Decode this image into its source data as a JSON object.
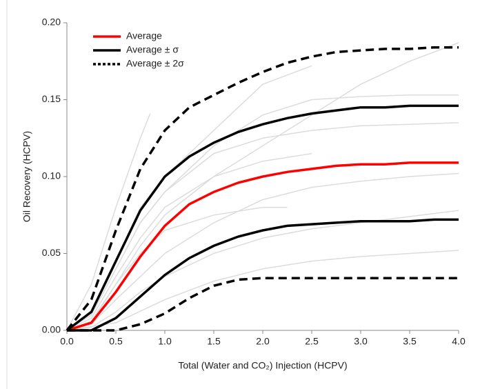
{
  "chart_data": {
    "type": "line",
    "title_y": "Oil Recovery (HCPV)",
    "title_x": "Total (Water and CO₂) Injection (HCPV)",
    "xlim": [
      0,
      4
    ],
    "ylim": [
      0,
      0.2
    ],
    "xticks": [
      {
        "value": 0,
        "label": "0.0"
      },
      0.5,
      {
        "value": 1,
        "label": "1.0"
      },
      1.5,
      {
        "value": 2,
        "label": "2.0"
      },
      2.5,
      {
        "value": 3,
        "label": "3.0"
      },
      3.5,
      {
        "value": 4,
        "label": "4.0"
      }
    ],
    "yticks": [
      {
        "value": 0,
        "label": "0.00"
      },
      {
        "value": 0.05,
        "label": "0.05"
      },
      {
        "value": 0.1,
        "label": "0.10"
      },
      {
        "value": 0.15,
        "label": "0.15"
      },
      {
        "value": 0.2,
        "label": "0.20"
      }
    ],
    "legend": "top-left",
    "x": [
      0,
      0.25,
      0.5,
      0.75,
      1,
      1.25,
      1.5,
      1.75,
      2,
      2.25,
      2.5,
      2.75,
      3,
      3.25,
      3.5,
      3.75,
      4
    ],
    "series": [
      {
        "name": "Average",
        "color": "#ff0000",
        "dash": "solid",
        "upper": [
          0,
          0.005,
          0.025,
          0.048,
          0.068,
          0.082,
          0.09,
          0.096,
          0.1,
          0.103,
          0.105,
          0.107,
          0.108,
          0.108,
          0.109,
          0.109,
          0.109
        ]
      },
      {
        "name": "Average ± σ",
        "color": "#000000",
        "dash": "solid",
        "upper": [
          0,
          0.012,
          0.045,
          0.078,
          0.1,
          0.113,
          0.122,
          0.129,
          0.134,
          0.138,
          0.141,
          0.143,
          0.145,
          0.145,
          0.146,
          0.146,
          0.146
        ],
        "lower": [
          0,
          0,
          0.008,
          0.022,
          0.036,
          0.047,
          0.055,
          0.061,
          0.065,
          0.068,
          0.069,
          0.07,
          0.071,
          0.071,
          0.071,
          0.072,
          0.072
        ]
      },
      {
        "name": "Average ± 2σ",
        "color": "#000000",
        "dash": "dashed",
        "upper": [
          0,
          0.02,
          0.065,
          0.105,
          0.13,
          0.145,
          0.153,
          0.161,
          0.168,
          0.174,
          0.178,
          0.181,
          0.182,
          0.183,
          0.183,
          0.184,
          0.184
        ],
        "lower": [
          0,
          0,
          0,
          0.004,
          0.011,
          0.021,
          0.029,
          0.033,
          0.034,
          0.034,
          0.034,
          0.034,
          0.034,
          0.034,
          0.034,
          0.034,
          0.034
        ]
      }
    ],
    "realization_color": "#dcdcdc",
    "realizations": [
      {
        "x": [
          0,
          0.25,
          0.5,
          0.75,
          0.85
        ],
        "values": [
          0,
          0.03,
          0.08,
          0.125,
          0.141
        ]
      },
      {
        "x": [
          0,
          0.25,
          0.5,
          0.75,
          1,
          1.5,
          2,
          2.5,
          3,
          3.5,
          4
        ],
        "values": [
          0,
          0.01,
          0.04,
          0.07,
          0.09,
          0.12,
          0.14,
          0.15,
          0.152,
          0.153,
          0.153
        ]
      },
      {
        "x": [
          0,
          0.25,
          0.5,
          0.75,
          1,
          1.5,
          2,
          2.5,
          3,
          3.5,
          4
        ],
        "values": [
          0,
          0.005,
          0.03,
          0.055,
          0.075,
          0.1,
          0.12,
          0.14,
          0.16,
          0.175,
          0.187
        ]
      },
      {
        "x": [
          0,
          0.25,
          0.5,
          0.75,
          1,
          1.5,
          2,
          2.5
        ],
        "values": [
          0,
          0.008,
          0.035,
          0.06,
          0.08,
          0.1,
          0.11,
          0.115
        ]
      },
      {
        "x": [
          0,
          0.25,
          0.5,
          0.75,
          1,
          1.5,
          2,
          2.5,
          3,
          3.5,
          4
        ],
        "values": [
          0,
          0.004,
          0.02,
          0.035,
          0.05,
          0.07,
          0.085,
          0.093,
          0.097,
          0.1,
          0.102
        ]
      },
      {
        "x": [
          0,
          0.25,
          0.5,
          0.75,
          1,
          1.5,
          2,
          2.5,
          3,
          3.5,
          4
        ],
        "values": [
          0,
          0.002,
          0.012,
          0.025,
          0.035,
          0.05,
          0.06,
          0.066,
          0.07,
          0.074,
          0.078
        ]
      },
      {
        "x": [
          0,
          0.5,
          1,
          1.5,
          2,
          2.5,
          3,
          3.5,
          4
        ],
        "values": [
          0,
          0.005,
          0.02,
          0.032,
          0.04,
          0.045,
          0.048,
          0.05,
          0.052
        ]
      },
      {
        "x": [
          0,
          0.25,
          0.5,
          0.75,
          1,
          1.5,
          2,
          2.5,
          3,
          3.5,
          4
        ],
        "values": [
          0,
          0.01,
          0.04,
          0.07,
          0.09,
          0.115,
          0.125,
          0.13,
          0.133,
          0.134,
          0.135
        ]
      },
      {
        "x": [
          0,
          0.25,
          0.5,
          0.75,
          1,
          1.5,
          2,
          2.25
        ],
        "values": [
          0,
          0.006,
          0.03,
          0.05,
          0.065,
          0.075,
          0.08,
          0.08
        ]
      },
      {
        "x": [
          0,
          0.25,
          0.5,
          0.75,
          1,
          1.5,
          2,
          2.5
        ],
        "values": [
          0,
          0.01,
          0.045,
          0.08,
          0.1,
          0.13,
          0.16,
          0.172
        ]
      }
    ]
  }
}
